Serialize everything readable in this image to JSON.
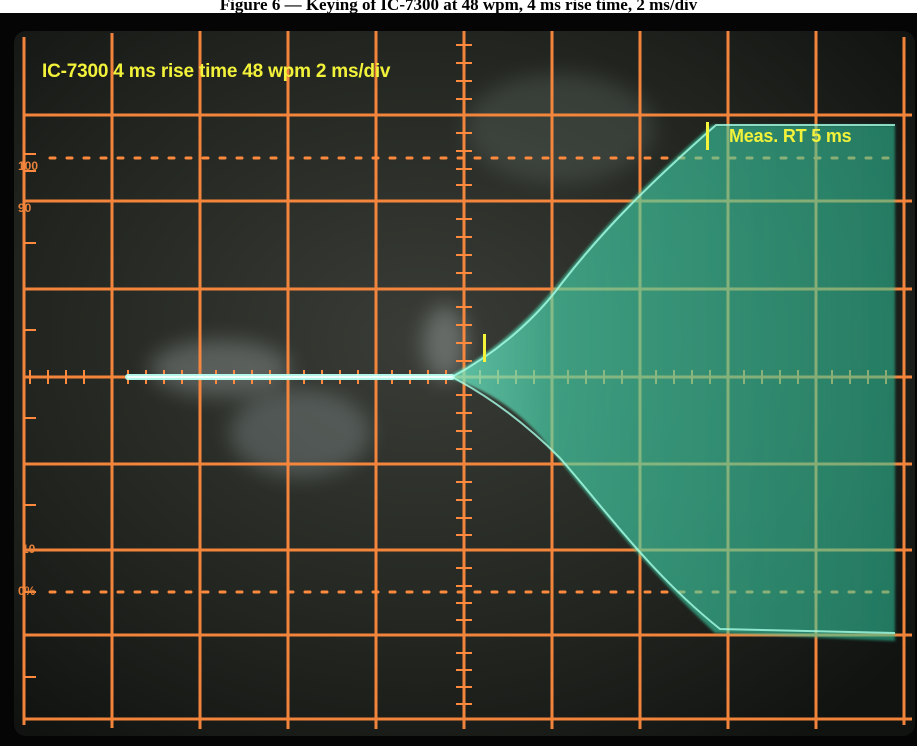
{
  "caption": "Figure 6 — Keying of IC-7300 at 48 wpm, 4 ms rise time, 2 ms/div",
  "photo": {
    "description_label": "oscilloscope-photo",
    "settings_text": "IC-7300 4 ms rise time 48 wpm 2 ms/div",
    "measurement_text": "Meas. RT 5 ms",
    "scale_labels": {
      "top": "100",
      "upper": "90",
      "lower": "10",
      "bottom": "0%"
    }
  },
  "colors": {
    "screen_background": "#1d201c",
    "grid": "#ff8a3d",
    "trace": "#52d9b6",
    "trace_line": "#b8fff3",
    "marker": "#f4f43a",
    "label": "#f2f23a"
  },
  "icons": {
    "start-marker": "vertical-bar",
    "end-marker": "vertical-bar"
  }
}
